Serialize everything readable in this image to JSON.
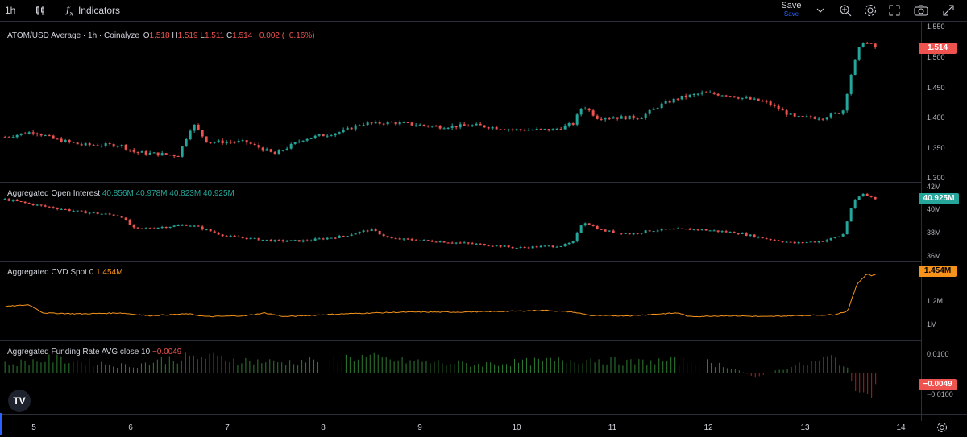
{
  "toolbar": {
    "interval": "1h",
    "indicators_label": "Indicators",
    "save_label": "Save",
    "save_sub": "Save"
  },
  "colors": {
    "up": "#26a69a",
    "down": "#ef5350",
    "cvd": "#f7931a",
    "bg": "#000000"
  },
  "icons": [
    "candles-icon",
    "fx-icon",
    "chevron-down-icon",
    "search-icon",
    "gear-icon",
    "fullscreen-icon",
    "camera-icon",
    "share-icon",
    "settings-icon"
  ],
  "price_pane": {
    "title": "ATOM/USD Average · 1h · Coinalyze",
    "o_label": "O",
    "o": "1.518",
    "h_label": "H",
    "h": "1.519",
    "l_label": "L",
    "l": "1.511",
    "c_label": "C",
    "c": "1.514",
    "change": "−0.002 (−0.16%)",
    "ticks": [
      "1.550",
      "1.500",
      "1.450",
      "1.400",
      "1.350",
      "1.300"
    ],
    "last": "1.514"
  },
  "oi_pane": {
    "title": "Aggregated Open Interest",
    "o": "40.856M",
    "h": "40.978M",
    "l": "40.823M",
    "c": "40.925M",
    "ticks": [
      "42M",
      "40M",
      "38M",
      "36M"
    ],
    "last": "40.925M"
  },
  "cvd_pane": {
    "title": "Aggregated CVD Spot 0",
    "value": "1.454M",
    "ticks": [
      "1.2M",
      "1M"
    ],
    "last": "1.454M"
  },
  "fr_pane": {
    "title": "Aggregated Funding Rate AVG close 10",
    "value": "−0.0049",
    "ticks": [
      "0.0100",
      "−0.0100"
    ],
    "last": "−0.0049"
  },
  "x_axis": {
    "labels": [
      "5",
      "6",
      "7",
      "8",
      "9",
      "10",
      "11",
      "12",
      "13",
      "14"
    ]
  },
  "chart_data": [
    {
      "type": "candlestick",
      "title": "ATOM/USD Average · 1h · Coinalyze",
      "ylim": [
        1.3,
        1.55
      ],
      "x": [
        5,
        13.75
      ],
      "close_path": [
        [
          4.7,
          1.368
        ],
        [
          5,
          1.377
        ],
        [
          5.2,
          1.365
        ],
        [
          5.5,
          1.355
        ],
        [
          5.9,
          1.355
        ],
        [
          6.05,
          1.343
        ],
        [
          6.5,
          1.338
        ],
        [
          6.65,
          1.39
        ],
        [
          6.8,
          1.36
        ],
        [
          7.2,
          1.36
        ],
        [
          7.5,
          1.34
        ],
        [
          7.8,
          1.365
        ],
        [
          8.2,
          1.377
        ],
        [
          8.4,
          1.39
        ],
        [
          8.5,
          1.39
        ],
        [
          8.7,
          1.392
        ],
        [
          9.2,
          1.385
        ],
        [
          9.6,
          1.387
        ],
        [
          10.0,
          1.38
        ],
        [
          10.4,
          1.38
        ],
        [
          10.6,
          1.39
        ],
        [
          10.7,
          1.42
        ],
        [
          10.85,
          1.4
        ],
        [
          11.1,
          1.4
        ],
        [
          11.3,
          1.4
        ],
        [
          11.5,
          1.42
        ],
        [
          11.7,
          1.432
        ],
        [
          11.95,
          1.44
        ],
        [
          12.2,
          1.437
        ],
        [
          12.35,
          1.432
        ],
        [
          12.6,
          1.425
        ],
        [
          12.9,
          1.4
        ],
        [
          13.2,
          1.4
        ],
        [
          13.4,
          1.41
        ],
        [
          13.5,
          1.48
        ],
        [
          13.6,
          1.525
        ],
        [
          13.75,
          1.514
        ]
      ]
    },
    {
      "type": "candlestick",
      "title": "Aggregated Open Interest",
      "ylim": [
        36,
        42
      ],
      "x": [
        5,
        13.75
      ],
      "close_path": [
        [
          4.7,
          40.9
        ],
        [
          5.1,
          40.3
        ],
        [
          5.5,
          39.8
        ],
        [
          5.9,
          39.5
        ],
        [
          6.05,
          38.3
        ],
        [
          6.6,
          38.7
        ],
        [
          6.7,
          38.5
        ],
        [
          7.0,
          37.7
        ],
        [
          7.5,
          37.3
        ],
        [
          7.8,
          37.3
        ],
        [
          8.2,
          37.7
        ],
        [
          8.5,
          38.3
        ],
        [
          8.7,
          37.5
        ],
        [
          9.3,
          37.2
        ],
        [
          9.8,
          36.9
        ],
        [
          10.0,
          36.7
        ],
        [
          10.5,
          36.9
        ],
        [
          10.6,
          37.2
        ],
        [
          10.7,
          39.0
        ],
        [
          10.9,
          38.2
        ],
        [
          11.2,
          37.9
        ],
        [
          11.4,
          38.2
        ],
        [
          11.6,
          38.3
        ],
        [
          11.9,
          38.3
        ],
        [
          12.3,
          38.0
        ],
        [
          12.6,
          37.5
        ],
        [
          12.9,
          37.1
        ],
        [
          13.2,
          37.3
        ],
        [
          13.4,
          37.8
        ],
        [
          13.5,
          40.5
        ],
        [
          13.6,
          41.4
        ],
        [
          13.75,
          40.925
        ]
      ]
    },
    {
      "type": "line",
      "title": "Aggregated CVD Spot 0",
      "ylim": [
        0.8,
        1.55
      ],
      "points": [
        [
          4.7,
          1.1
        ],
        [
          4.95,
          1.12
        ],
        [
          5.1,
          1.03
        ],
        [
          5.5,
          1.02
        ],
        [
          5.9,
          1.03
        ],
        [
          6.2,
          1.0
        ],
        [
          6.6,
          1.02
        ],
        [
          6.8,
          0.99
        ],
        [
          7.2,
          1.0
        ],
        [
          7.4,
          1.03
        ],
        [
          7.6,
          0.99
        ],
        [
          8.2,
          1.02
        ],
        [
          8.5,
          1.03
        ],
        [
          8.9,
          1.04
        ],
        [
          9.4,
          1.04
        ],
        [
          10.0,
          1.05
        ],
        [
          10.3,
          1.06
        ],
        [
          10.6,
          1.04
        ],
        [
          10.8,
          1.0
        ],
        [
          11.2,
          1.0
        ],
        [
          11.5,
          1.02
        ],
        [
          11.7,
          1.03
        ],
        [
          11.8,
          0.99
        ],
        [
          12.2,
          1.0
        ],
        [
          12.6,
          0.99
        ],
        [
          12.9,
          1.0
        ],
        [
          13.3,
          1.01
        ],
        [
          13.45,
          1.05
        ],
        [
          13.55,
          1.35
        ],
        [
          13.65,
          1.46
        ],
        [
          13.7,
          1.44
        ],
        [
          13.75,
          1.454
        ]
      ]
    },
    {
      "type": "bar",
      "title": "Aggregated Funding Rate AVG close 10",
      "ylim": [
        -0.02,
        0.012
      ],
      "values_profile": [
        [
          4.7,
          0.005
        ],
        [
          5.2,
          0.008
        ],
        [
          5.6,
          0.006
        ],
        [
          6.0,
          0.004
        ],
        [
          6.4,
          0.008
        ],
        [
          6.8,
          0.009
        ],
        [
          7.2,
          0.007
        ],
        [
          7.6,
          0.006
        ],
        [
          8.0,
          0.008
        ],
        [
          8.4,
          0.009
        ],
        [
          8.8,
          0.007
        ],
        [
          9.2,
          0.006
        ],
        [
          9.6,
          0.005
        ],
        [
          10.0,
          0.006
        ],
        [
          10.4,
          0.007
        ],
        [
          10.8,
          0.008
        ],
        [
          11.2,
          0.006
        ],
        [
          11.6,
          0.007
        ],
        [
          12.0,
          0.006
        ],
        [
          12.2,
          0.004
        ],
        [
          12.5,
          -0.002
        ],
        [
          12.8,
          0.003
        ],
        [
          13.1,
          0.006
        ],
        [
          13.3,
          0.009
        ],
        [
          13.45,
          0.003
        ],
        [
          13.55,
          -0.012
        ],
        [
          13.65,
          -0.018
        ],
        [
          13.75,
          -0.0049
        ]
      ]
    }
  ]
}
